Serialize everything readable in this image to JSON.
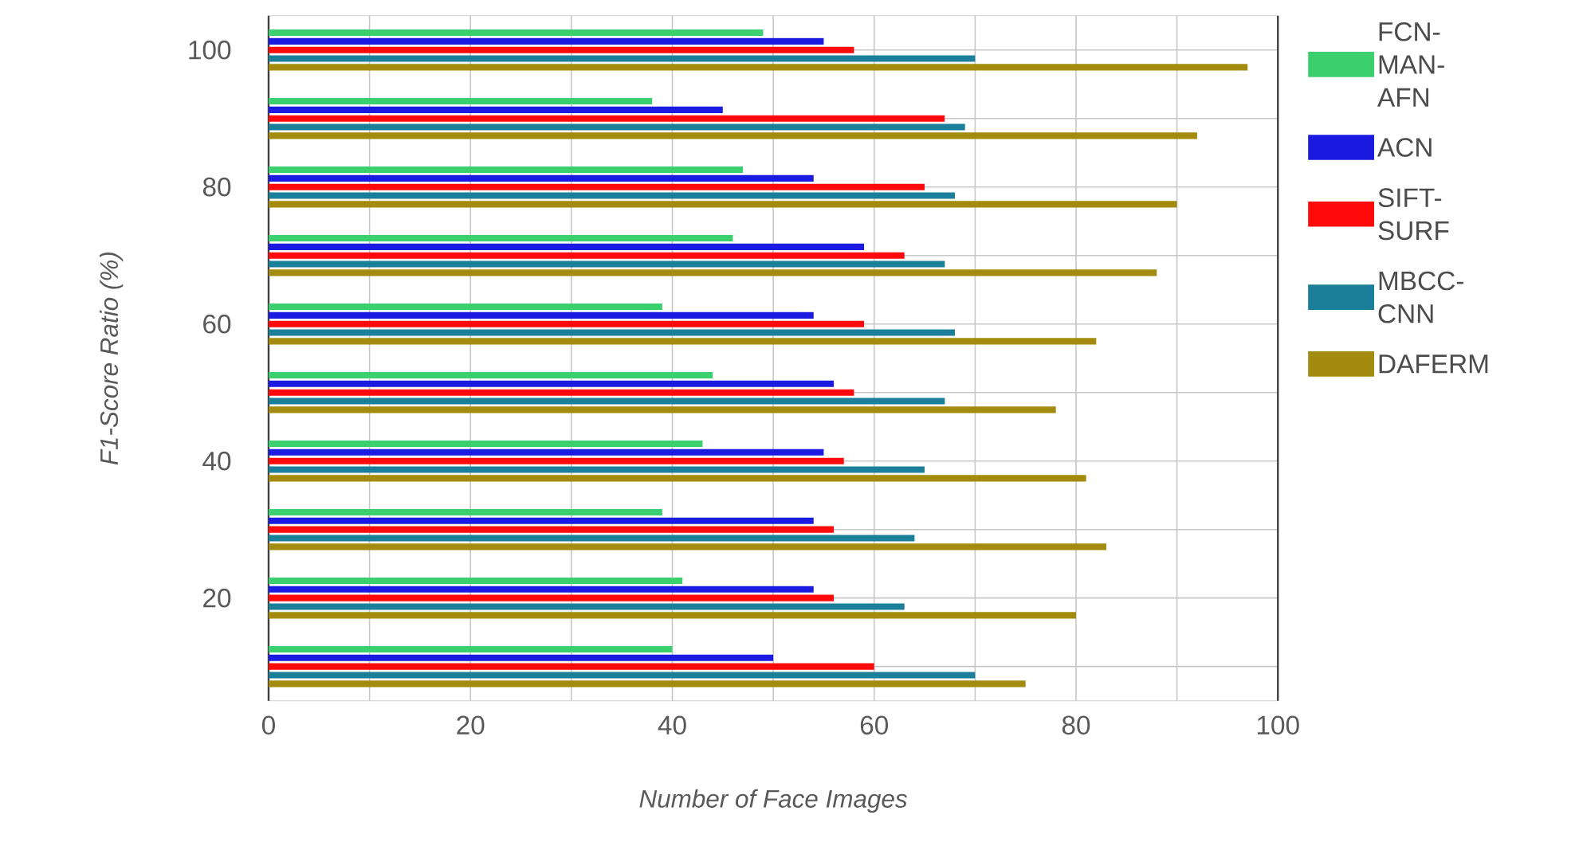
{
  "chart_data": {
    "type": "bar",
    "orientation": "horizontal",
    "xlabel": "Number of Face Images",
    "ylabel": "F1-Score Ratio (%)",
    "categories": [
      "100",
      null,
      "80",
      null,
      "60",
      null,
      "40",
      null,
      "20",
      null
    ],
    "series": [
      {
        "name": "FCN-MAN-AFN",
        "color": "#3ccf6e",
        "values": [
          49,
          38,
          47,
          46,
          39,
          44,
          43,
          39,
          41,
          40
        ]
      },
      {
        "name": "ACN",
        "color": "#1a1ae0",
        "values": [
          55,
          45,
          54,
          59,
          54,
          56,
          55,
          54,
          54,
          50
        ]
      },
      {
        "name": "SIFT-SURF",
        "color": "#ff0a0a",
        "values": [
          58,
          67,
          65,
          63,
          59,
          58,
          57,
          56,
          56,
          60
        ]
      },
      {
        "name": "MBCC-CNN",
        "color": "#1b7f99",
        "values": [
          70,
          69,
          68,
          67,
          68,
          67,
          65,
          64,
          63,
          70
        ]
      },
      {
        "name": "DAFERM",
        "color": "#a38b0f",
        "values": [
          97,
          92,
          90,
          88,
          82,
          78,
          81,
          83,
          80,
          75
        ]
      }
    ],
    "xlim": [
      0,
      100
    ],
    "xticks": [
      0,
      {
        "value": 10,
        "label": null
      },
      20,
      {
        "value": 30,
        "label": null
      },
      40,
      {
        "value": 50,
        "label": null
      },
      60,
      {
        "value": 70,
        "label": null
      },
      80,
      {
        "value": 90,
        "label": null
      },
      100
    ],
    "grid": true,
    "legend": "right"
  }
}
